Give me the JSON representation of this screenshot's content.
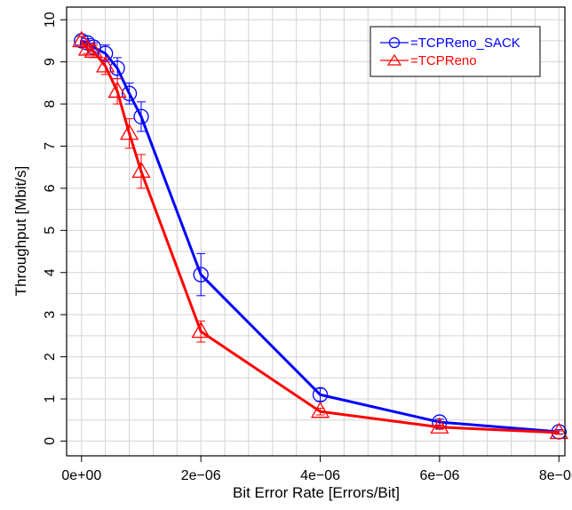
{
  "chart_data": {
    "type": "line",
    "title": "",
    "xlabel": "Bit Error Rate  [Errors/Bit]",
    "ylabel": "Throughput [Mbit/s]",
    "xlim": [
      -2.5e-07,
      8.1e-06
    ],
    "ylim": [
      -0.35,
      10.3
    ],
    "x_ticks": [
      0,
      2e-06,
      4e-06,
      6e-06,
      8e-06
    ],
    "x_tick_labels": [
      "0e+00",
      "2e−06",
      "4e−06",
      "6e−06",
      "8e−06"
    ],
    "y_ticks": [
      0,
      1,
      2,
      3,
      4,
      5,
      6,
      7,
      8,
      9,
      10
    ],
    "y_tick_labels": [
      "0",
      "1",
      "2",
      "3",
      "4",
      "5",
      "6",
      "7",
      "8",
      "9",
      "10"
    ],
    "x_grid": [
      0,
      4e-07,
      8e-07,
      1.2e-06,
      1.6e-06,
      2e-06,
      2.4e-06,
      2.8e-06,
      3.2e-06,
      3.6e-06,
      4e-06,
      4.4e-06,
      4.8e-06,
      5.2e-06,
      5.6e-06,
      6e-06,
      6.4e-06,
      6.8e-06,
      7.2e-06,
      7.6e-06,
      8e-06
    ],
    "y_grid": [
      0,
      0.5,
      1,
      1.5,
      2,
      2.5,
      3,
      3.5,
      4,
      4.5,
      5,
      5.5,
      6,
      5.5,
      6.5,
      7,
      7.5,
      8,
      8.5,
      9,
      9.5,
      10
    ],
    "grid": true,
    "legend_position": "top-right",
    "series": [
      {
        "name": "=TCPReno_SACK",
        "marker": "circle",
        "color": "#0000ff",
        "x": [
          0,
          1e-07,
          2e-07,
          4e-07,
          6e-07,
          8e-07,
          1e-06,
          2e-06,
          4e-06,
          6e-06,
          8e-06
        ],
        "y": [
          9.5,
          9.45,
          9.35,
          9.2,
          8.85,
          8.25,
          7.7,
          3.95,
          1.1,
          0.45,
          0.22
        ],
        "err_low": [
          9.4,
          9.35,
          9.25,
          9.0,
          8.6,
          8.0,
          7.35,
          3.45,
          0.95,
          0.38,
          0.17
        ],
        "err_high": [
          9.6,
          9.55,
          9.45,
          9.4,
          9.1,
          8.5,
          8.05,
          4.45,
          1.25,
          0.52,
          0.27
        ]
      },
      {
        "name": "=TCPReno",
        "marker": "triangle",
        "color": "#ff0000",
        "x": [
          0,
          1e-07,
          2e-07,
          4e-07,
          6e-07,
          8e-07,
          1e-06,
          2e-06,
          4e-06,
          6e-06,
          8e-06
        ],
        "y": [
          9.5,
          9.3,
          9.25,
          8.9,
          8.3,
          7.3,
          6.4,
          2.6,
          0.7,
          0.33,
          0.2
        ],
        "err_low": [
          9.4,
          9.2,
          9.1,
          8.7,
          8.0,
          6.95,
          6.0,
          2.35,
          0.62,
          0.28,
          0.16
        ],
        "err_high": [
          9.6,
          9.4,
          9.4,
          9.1,
          8.6,
          7.65,
          6.8,
          2.85,
          0.78,
          0.38,
          0.24
        ]
      }
    ]
  }
}
